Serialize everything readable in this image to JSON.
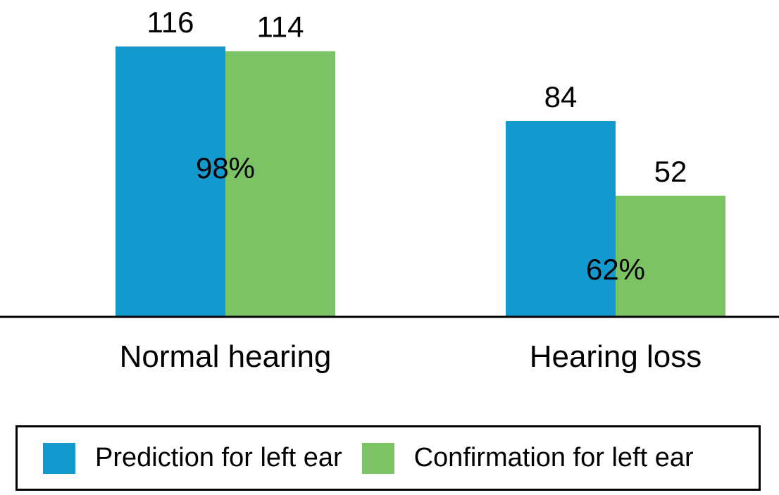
{
  "chart_data": {
    "type": "bar",
    "categories": [
      "Normal hearing",
      "Hearing loss"
    ],
    "series": [
      {
        "name": "Prediction for left ear",
        "values": [
          116,
          84
        ],
        "color": "#1399cd"
      },
      {
        "name": "Confirmation for left ear",
        "values": [
          114,
          52
        ],
        "color": "#7cc365"
      }
    ],
    "ratio_labels": [
      "98%",
      "62%"
    ],
    "ylim": [
      0,
      120
    ],
    "grid": false,
    "legend_placement": "bottom"
  }
}
